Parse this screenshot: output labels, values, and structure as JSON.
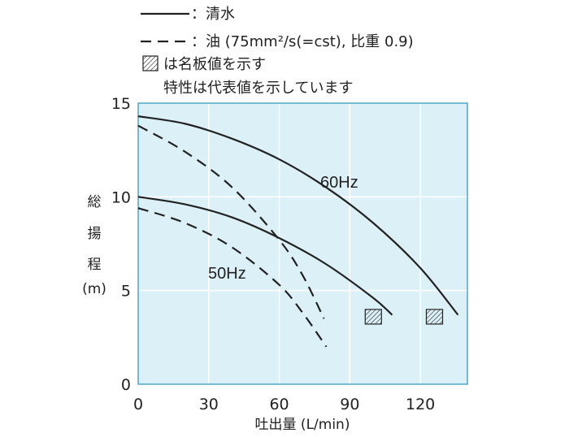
{
  "chart_data": {
    "type": "line",
    "xlabel": "吐出量 (L/min)",
    "ylabel": "総揚程(m)",
    "xlim": [
      0,
      140
    ],
    "ylim": [
      0,
      15
    ],
    "xticks": [
      "0",
      "30",
      "60",
      "90",
      "120"
    ],
    "yticks": [
      "0",
      "5",
      "10",
      "15"
    ],
    "grid": true,
    "background": "#dcf0f8",
    "legend": {
      "position": "top",
      "entries": [
        {
          "style": "solid",
          "label": "：清水"
        },
        {
          "style": "dashed",
          "label": "：油 (75mm²/s(=cst), 比重 0.9)"
        },
        {
          "style": "hatched",
          "label": "は名板値を示す"
        }
      ],
      "note": "特性は代表値を示しています"
    },
    "series": [
      {
        "label": "60Hz",
        "fluid": "清水",
        "style": "solid",
        "x": [
          0,
          20,
          40,
          60,
          80,
          100,
          120,
          136
        ],
        "y": [
          14.3,
          13.9,
          13.1,
          12.0,
          10.5,
          8.6,
          6.2,
          3.7
        ]
      },
      {
        "label": "50Hz",
        "fluid": "清水",
        "style": "solid",
        "x": [
          0,
          20,
          40,
          60,
          80,
          100,
          108
        ],
        "y": [
          10.0,
          9.6,
          8.9,
          7.8,
          6.4,
          4.6,
          3.7
        ]
      },
      {
        "fluid": "油",
        "freq": "60Hz",
        "style": "dashed",
        "x": [
          0,
          20,
          40,
          60,
          70,
          79
        ],
        "y": [
          13.8,
          12.4,
          10.5,
          7.7,
          5.8,
          3.5
        ]
      },
      {
        "fluid": "油",
        "freq": "50Hz",
        "style": "dashed",
        "x": [
          0,
          20,
          40,
          60,
          70,
          80
        ],
        "y": [
          9.4,
          8.6,
          7.3,
          5.3,
          3.8,
          2.0
        ]
      }
    ],
    "rated_points": [
      {
        "freq": "50Hz",
        "x": 100,
        "y": 3.6
      },
      {
        "freq": "60Hz",
        "x": 126,
        "y": 3.6
      }
    ]
  },
  "colors": {
    "line": "#222222",
    "frame": "#4aa8c8",
    "grid": "#ffffff",
    "background": "#dcf0f8"
  }
}
